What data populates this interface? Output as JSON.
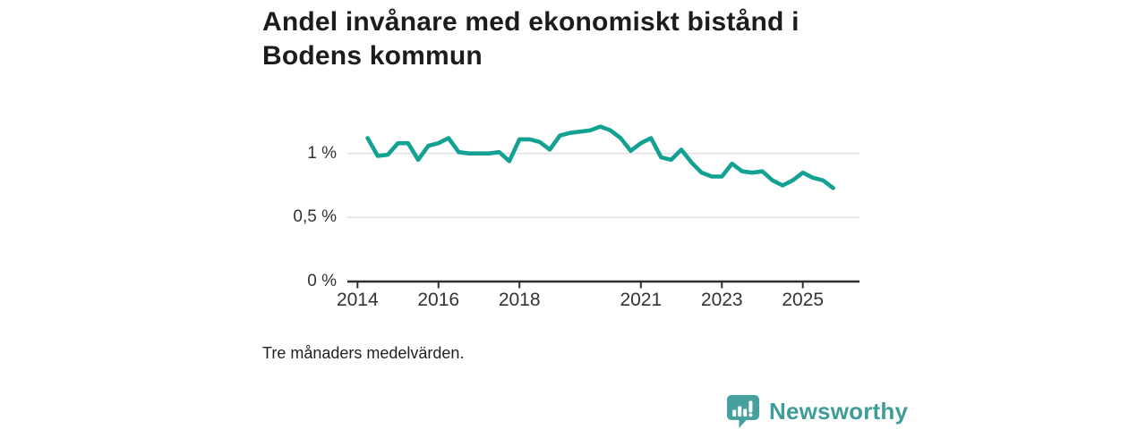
{
  "page": {
    "title": "Andel invånare med ekonomiskt bistånd i Bodens kommun",
    "caption": "Tre månaders medelvärden.",
    "brand": {
      "name": "Newsworthy",
      "icon": "newsworthy-speech-bubble-bar-chart-icon",
      "icon_color": "#46a09e",
      "text_color": "#3f9d99"
    }
  },
  "chart_data": {
    "type": "line",
    "title": "Andel invånare med ekonomiskt bistånd i Bodens kommun",
    "note": "Tre månaders medelvärden.",
    "unit": "%",
    "grid": "horizontal",
    "legend": "none",
    "xlim": [
      2013.75,
      2026.4
    ],
    "ylim": [
      0,
      1.35
    ],
    "x": [
      2014.25,
      2014.5,
      2014.75,
      2015.0,
      2015.25,
      2015.5,
      2015.75,
      2016.0,
      2016.25,
      2016.5,
      2016.75,
      2017.0,
      2017.25,
      2017.5,
      2017.75,
      2018.0,
      2018.25,
      2018.5,
      2018.75,
      2019.0,
      2019.25,
      2019.5,
      2019.75,
      2020.0,
      2020.25,
      2020.5,
      2020.75,
      2021.0,
      2021.25,
      2021.5,
      2021.75,
      2022.0,
      2022.25,
      2022.5,
      2022.75,
      2023.0,
      2023.25,
      2023.5,
      2023.75,
      2024.0,
      2024.25,
      2024.5,
      2024.75,
      2025.0,
      2025.25,
      2025.5,
      2025.75
    ],
    "series": [
      {
        "name": "Andel invånare med ekonomiskt bistånd",
        "color": "#12a192",
        "values": [
          1.12,
          0.98,
          0.99,
          1.08,
          1.08,
          0.95,
          1.06,
          1.08,
          1.12,
          1.01,
          1.0,
          1.0,
          1.0,
          1.01,
          0.94,
          1.11,
          1.11,
          1.09,
          1.03,
          1.14,
          1.16,
          1.17,
          1.18,
          1.21,
          1.18,
          1.12,
          1.02,
          1.08,
          1.12,
          0.97,
          0.95,
          1.03,
          0.93,
          0.85,
          0.82,
          0.82,
          0.92,
          0.86,
          0.85,
          0.86,
          0.79,
          0.75,
          0.79,
          0.85,
          0.81,
          0.79,
          0.73
        ]
      }
    ],
    "xticks": [
      {
        "year": 2014,
        "label": "2014"
      },
      {
        "year": 2016,
        "label": "2016"
      },
      {
        "year": 2018,
        "label": "2018"
      },
      {
        "year": 2021,
        "label": "2021"
      },
      {
        "year": 2023,
        "label": "2023"
      },
      {
        "year": 2025,
        "label": "2025"
      }
    ],
    "yticks": [
      {
        "value": 0,
        "label": "0 %"
      },
      {
        "value": 0.5,
        "label": "0,5 %"
      },
      {
        "value": 1,
        "label": "1 %"
      }
    ],
    "axis_color": "#2e2e2e",
    "gridline_color": "#e2e2e2"
  }
}
